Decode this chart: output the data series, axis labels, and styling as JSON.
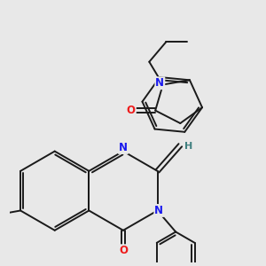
{
  "bg_color": "#e8e8e8",
  "bond_color": "#1a1a1a",
  "atom_colors": {
    "N": "#1a1aee",
    "O": "#ee1a1a",
    "I": "#cc44cc",
    "H": "#408080",
    "C": "#1a1a1a"
  },
  "figsize": [
    3.0,
    3.0
  ],
  "dpi": 100
}
